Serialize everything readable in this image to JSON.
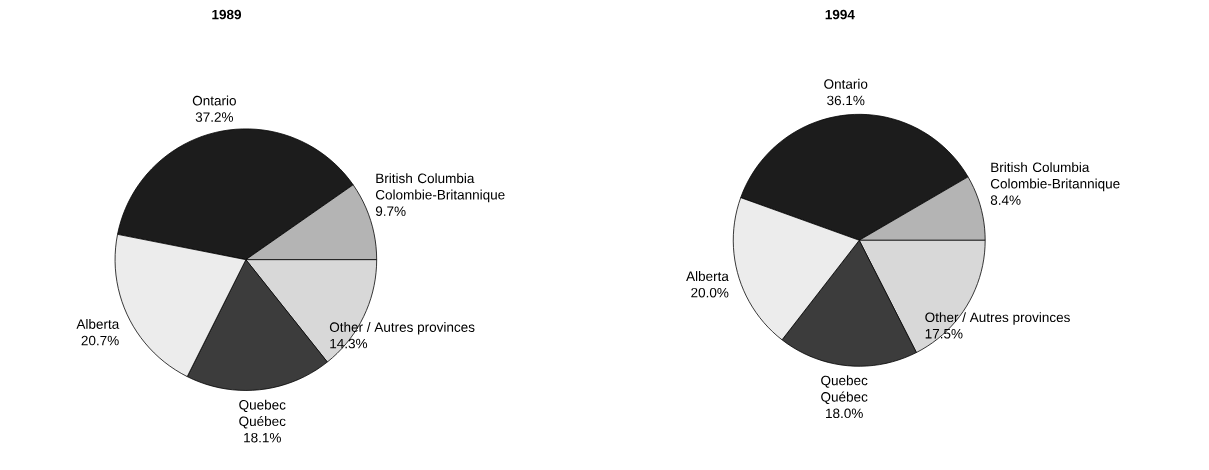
{
  "chart_data": [
    {
      "type": "pie",
      "title": "1989",
      "categories": [
        "Ontario",
        "British Columbia Colombie-Britannique",
        "Other / Autres provinces",
        "Quebec Québec",
        "Alberta"
      ],
      "values": [
        37.2,
        9.7,
        14.3,
        18.1,
        20.7
      ],
      "value_labels": [
        "37.2%",
        "9.7%",
        "14.3%",
        "18.1%",
        "20.7%"
      ],
      "colors": [
        "#1c1c1c",
        "#b4b4b4",
        "#d8d8d8",
        "#3c3c3c",
        "#ececec"
      ]
    },
    {
      "type": "pie",
      "title": "1994",
      "categories": [
        "Ontario",
        "British Columbia Colombie-Britannique",
        "Other / Autres provinces",
        "Quebec Québec",
        "Alberta"
      ],
      "values": [
        36.1,
        8.4,
        17.5,
        18.0,
        20.0
      ],
      "value_labels": [
        "36.1%",
        "8.4%",
        "17.5%",
        "18.0%",
        "20.0%"
      ],
      "colors": [
        "#1c1c1c",
        "#b4b4b4",
        "#d8d8d8",
        "#3c3c3c",
        "#ececec"
      ]
    }
  ]
}
